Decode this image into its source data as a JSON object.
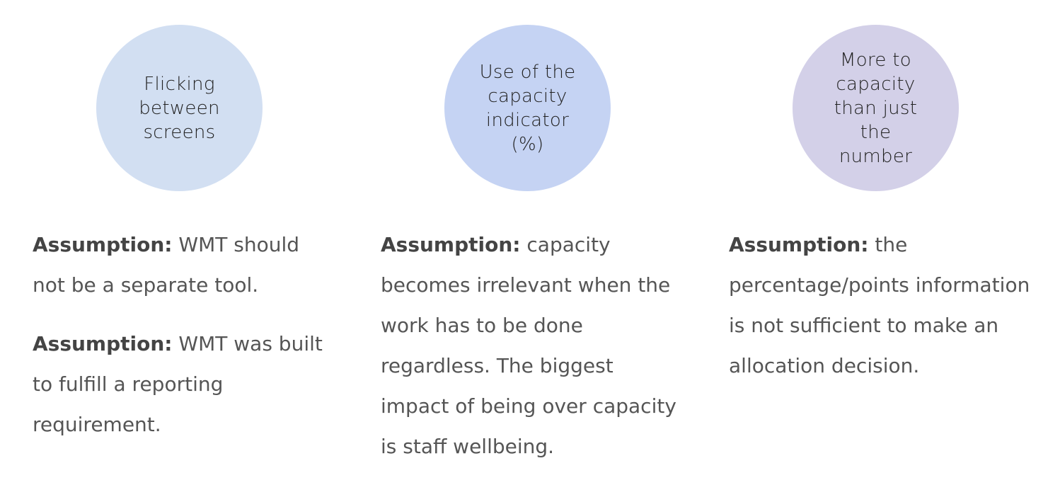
{
  "columns": [
    {
      "circle_label": "Flicking between screens",
      "circle_color": "#d2dff2",
      "assumptions": [
        {
          "lead": "Assumption:",
          "text": " WMT should not be a separate tool."
        },
        {
          "lead": "Assumption:",
          "text": " WMT was built to fulfill a reporting requirement."
        }
      ]
    },
    {
      "circle_label": "Use of the capacity indicator (%)",
      "circle_color": "#c5d3f3",
      "assumptions": [
        {
          "lead": "Assumption:",
          "text": " capacity becomes irrelevant when the work has to be done regardless. The biggest impact of being over capacity is staff wellbeing."
        }
      ]
    },
    {
      "circle_label": "More to capacity than just the number",
      "circle_color": "#d3d0e8",
      "assumptions": [
        {
          "lead": "Assumption:",
          "text": " the percentage/points information is not sufficient to make an allocation decision."
        }
      ]
    }
  ]
}
